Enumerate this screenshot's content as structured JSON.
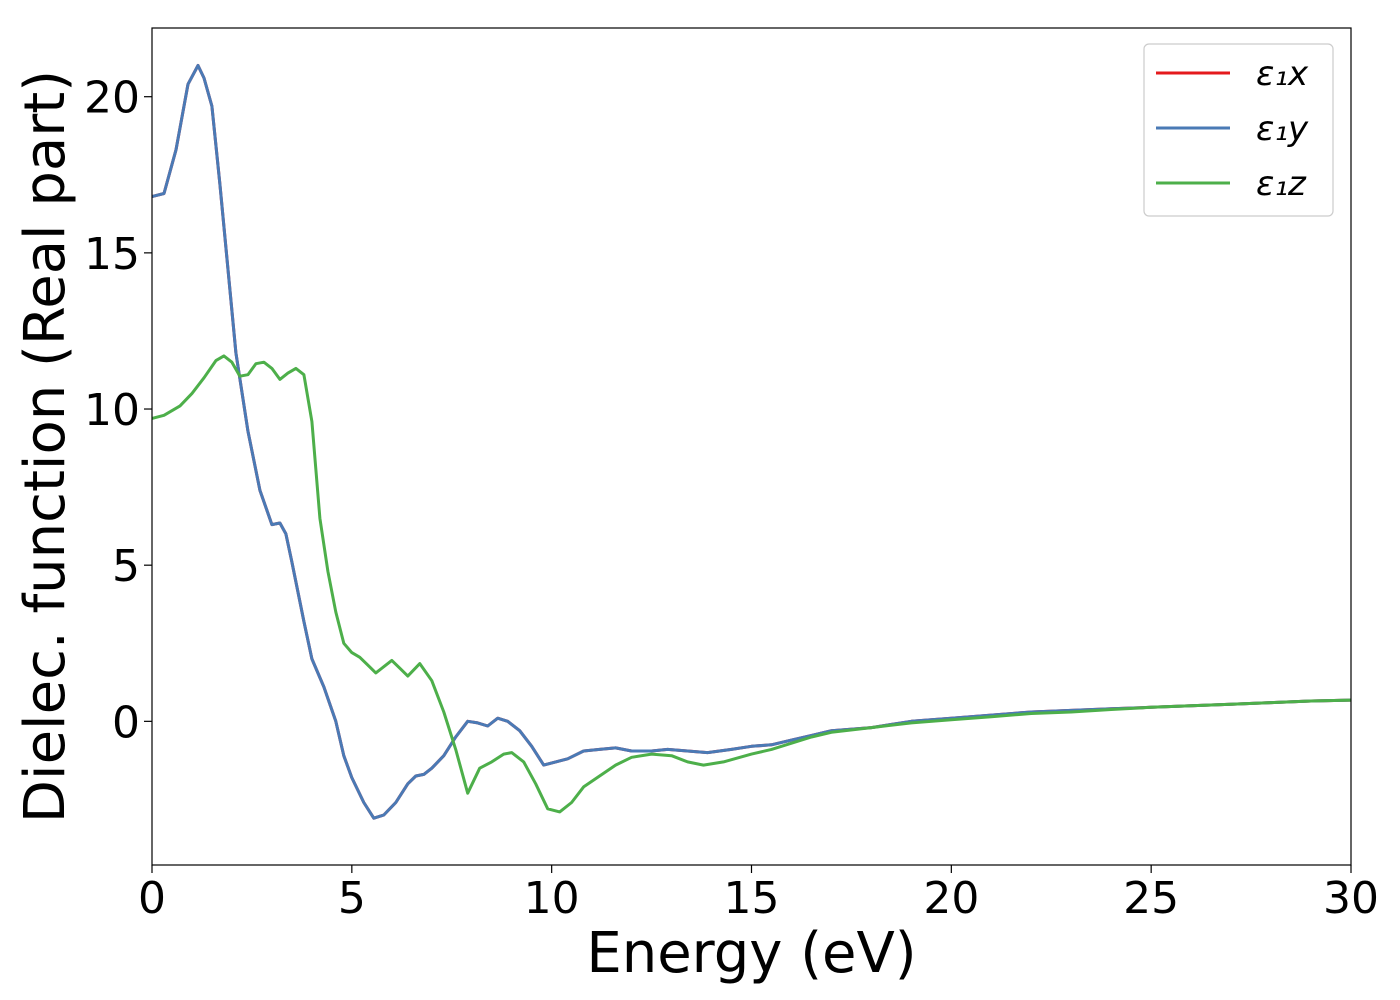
{
  "chart_data": {
    "type": "line",
    "xlabel": "Energy (eV)",
    "ylabel": "Dielec. function (Real part)",
    "xlim": [
      0,
      30
    ],
    "ylim": [
      -4.6,
      22.2
    ],
    "x_ticks": [
      "0",
      "5",
      "10",
      "15",
      "20",
      "25",
      "30"
    ],
    "y_ticks": [
      "0",
      "5",
      "10",
      "15",
      "20"
    ],
    "grid": false,
    "legend_position": "top-right",
    "series": [
      {
        "name": "ε₁x",
        "color": "#e41a1c",
        "x": [
          0,
          0.3,
          0.6,
          0.9,
          1.15,
          1.3,
          1.5,
          1.7,
          1.9,
          2.1,
          2.4,
          2.7,
          3.0,
          3.2,
          3.35,
          3.5,
          3.8,
          4.0,
          4.3,
          4.6,
          4.8,
          5.0,
          5.3,
          5.55,
          5.8,
          6.1,
          6.4,
          6.6,
          6.8,
          7.0,
          7.3,
          7.6,
          7.9,
          8.15,
          8.4,
          8.65,
          8.9,
          9.2,
          9.5,
          9.8,
          10.1,
          10.4,
          10.8,
          11.2,
          11.6,
          12.0,
          12.5,
          12.9,
          13.4,
          13.9,
          14.5,
          15.0,
          15.5,
          16.0,
          16.5,
          17.0,
          18.0,
          19.0,
          20.0,
          21.0,
          22.0,
          23.0,
          24.0,
          25.0,
          26.0,
          27.0,
          28.0,
          29.0,
          30.0
        ],
        "values": [
          16.8,
          16.9,
          18.3,
          20.4,
          21.0,
          20.6,
          19.7,
          17.2,
          14.5,
          11.8,
          9.3,
          7.4,
          6.3,
          6.35,
          6.0,
          5.1,
          3.2,
          2.0,
          1.1,
          0.0,
          -1.1,
          -1.8,
          -2.6,
          -3.1,
          -3.0,
          -2.6,
          -2.0,
          -1.75,
          -1.7,
          -1.5,
          -1.1,
          -0.5,
          0.0,
          -0.05,
          -0.15,
          0.1,
          0.0,
          -0.3,
          -0.8,
          -1.4,
          -1.3,
          -1.2,
          -0.95,
          -0.9,
          -0.85,
          -0.95,
          -0.95,
          -0.9,
          -0.95,
          -1.0,
          -0.9,
          -0.8,
          -0.75,
          -0.6,
          -0.45,
          -0.3,
          -0.2,
          0.0,
          0.1,
          0.2,
          0.3,
          0.35,
          0.4,
          0.45,
          0.5,
          0.55,
          0.6,
          0.65,
          0.68
        ]
      },
      {
        "name": "ε₁y",
        "color": "#4a7ab5",
        "x": [
          0,
          0.3,
          0.6,
          0.9,
          1.15,
          1.3,
          1.5,
          1.7,
          1.9,
          2.1,
          2.4,
          2.7,
          3.0,
          3.2,
          3.35,
          3.5,
          3.8,
          4.0,
          4.3,
          4.6,
          4.8,
          5.0,
          5.3,
          5.55,
          5.8,
          6.1,
          6.4,
          6.6,
          6.8,
          7.0,
          7.3,
          7.6,
          7.9,
          8.15,
          8.4,
          8.65,
          8.9,
          9.2,
          9.5,
          9.8,
          10.1,
          10.4,
          10.8,
          11.2,
          11.6,
          12.0,
          12.5,
          12.9,
          13.4,
          13.9,
          14.5,
          15.0,
          15.5,
          16.0,
          16.5,
          17.0,
          18.0,
          19.0,
          20.0,
          21.0,
          22.0,
          23.0,
          24.0,
          25.0,
          26.0,
          27.0,
          28.0,
          29.0,
          30.0
        ],
        "values": [
          16.8,
          16.9,
          18.3,
          20.4,
          21.0,
          20.6,
          19.7,
          17.2,
          14.5,
          11.8,
          9.3,
          7.4,
          6.3,
          6.35,
          6.0,
          5.1,
          3.2,
          2.0,
          1.1,
          0.0,
          -1.1,
          -1.8,
          -2.6,
          -3.1,
          -3.0,
          -2.6,
          -2.0,
          -1.75,
          -1.7,
          -1.5,
          -1.1,
          -0.5,
          0.0,
          -0.05,
          -0.15,
          0.1,
          0.0,
          -0.3,
          -0.8,
          -1.4,
          -1.3,
          -1.2,
          -0.95,
          -0.9,
          -0.85,
          -0.95,
          -0.95,
          -0.9,
          -0.95,
          -1.0,
          -0.9,
          -0.8,
          -0.75,
          -0.6,
          -0.45,
          -0.3,
          -0.2,
          0.0,
          0.1,
          0.2,
          0.3,
          0.35,
          0.4,
          0.45,
          0.5,
          0.55,
          0.6,
          0.65,
          0.68
        ]
      },
      {
        "name": "ε₁z",
        "color": "#4daf4a",
        "x": [
          0,
          0.3,
          0.7,
          1.0,
          1.3,
          1.6,
          1.8,
          2.0,
          2.2,
          2.4,
          2.6,
          2.8,
          3.0,
          3.2,
          3.4,
          3.6,
          3.8,
          4.0,
          4.2,
          4.4,
          4.6,
          4.8,
          5.0,
          5.2,
          5.4,
          5.6,
          5.8,
          6.0,
          6.2,
          6.4,
          6.7,
          7.0,
          7.3,
          7.6,
          7.9,
          8.2,
          8.5,
          8.8,
          9.0,
          9.3,
          9.6,
          9.9,
          10.2,
          10.5,
          10.8,
          11.2,
          11.6,
          12.0,
          12.5,
          13.0,
          13.4,
          13.8,
          14.3,
          15.0,
          15.5,
          16.0,
          16.5,
          17.0,
          18.0,
          19.0,
          20.0,
          21.0,
          22.0,
          23.0,
          24.0,
          25.0,
          26.0,
          27.0,
          28.0,
          29.0,
          30.0
        ],
        "values": [
          9.7,
          9.8,
          10.1,
          10.5,
          11.0,
          11.55,
          11.7,
          11.5,
          11.05,
          11.1,
          11.45,
          11.5,
          11.3,
          10.95,
          11.15,
          11.3,
          11.1,
          9.6,
          6.5,
          4.8,
          3.5,
          2.5,
          2.2,
          2.05,
          1.8,
          1.55,
          1.75,
          1.95,
          1.7,
          1.45,
          1.85,
          1.3,
          0.3,
          -0.9,
          -2.3,
          -1.5,
          -1.3,
          -1.05,
          -1.0,
          -1.3,
          -2.0,
          -2.8,
          -2.9,
          -2.6,
          -2.1,
          -1.75,
          -1.4,
          -1.15,
          -1.05,
          -1.1,
          -1.3,
          -1.4,
          -1.3,
          -1.05,
          -0.9,
          -0.7,
          -0.5,
          -0.35,
          -0.2,
          -0.05,
          0.05,
          0.15,
          0.25,
          0.3,
          0.38,
          0.45,
          0.5,
          0.55,
          0.6,
          0.65,
          0.68
        ]
      }
    ]
  }
}
